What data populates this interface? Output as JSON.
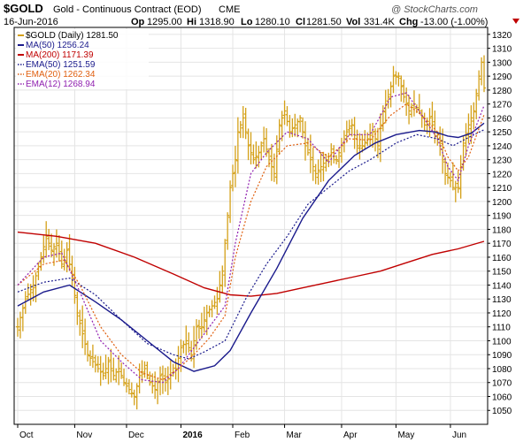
{
  "header": {
    "symbol": "$GOLD",
    "name": "Gold - Continuous Contract (EOD)",
    "exchange": "CME",
    "date": "16-Jun-2016",
    "open_label": "Op",
    "open": "1295.00",
    "high_label": "Hi",
    "high": "1318.90",
    "low_label": "Lo",
    "low": "1280.10",
    "close_label": "Cl",
    "close": "1281.50",
    "vol_label": "Vol",
    "vol": "331.4K",
    "chg_label": "Chg",
    "chg": "-13.00 (-1.00%)",
    "watermark": "@ StockCharts.com"
  },
  "colors": {
    "price": "#d4a017",
    "ma50": "#1a1a8c",
    "ma200": "#c00000",
    "ema50": "#1a1a8c",
    "ema20": "#e06010",
    "ema12": "#9020b0",
    "grid": "#e4e4e4",
    "down_arrow": "#c00000"
  },
  "chart_data": {
    "type": "line",
    "ylim": [
      1040,
      1325
    ],
    "y_ticks": [
      1050,
      1060,
      1070,
      1080,
      1090,
      1100,
      1110,
      1120,
      1130,
      1140,
      1150,
      1160,
      1170,
      1180,
      1190,
      1200,
      1210,
      1220,
      1230,
      1240,
      1250,
      1260,
      1270,
      1280,
      1290,
      1300,
      1310,
      1320
    ],
    "x_ticks": [
      "Oct",
      "Nov",
      "Dec",
      "2016",
      "Feb",
      "Mar",
      "Apr",
      "May",
      "Jun"
    ],
    "x_tick_index": [
      0,
      22,
      42,
      63,
      83,
      103,
      125,
      146,
      167
    ],
    "n_bars": 181,
    "legend": [
      {
        "key": "price",
        "label": "$GOLD (Daily) 1281.50",
        "style": "solid"
      },
      {
        "key": "ma50",
        "label": "MA(50) 1256.24",
        "style": "solid"
      },
      {
        "key": "ma200",
        "label": "MA(200) 1171.39",
        "style": "solid"
      },
      {
        "key": "ema50",
        "label": "EMA(50) 1251.59",
        "style": "dotted"
      },
      {
        "key": "ema20",
        "label": "EMA(20) 1262.34",
        "style": "dotted"
      },
      {
        "key": "ema12",
        "label": "EMA(12) 1268.94",
        "style": "dotted"
      }
    ],
    "price_anchors": [
      [
        0,
        1110
      ],
      [
        3,
        1130
      ],
      [
        6,
        1140
      ],
      [
        9,
        1160
      ],
      [
        11,
        1175
      ],
      [
        13,
        1165
      ],
      [
        15,
        1170
      ],
      [
        17,
        1155
      ],
      [
        19,
        1165
      ],
      [
        21,
        1145
      ],
      [
        23,
        1120
      ],
      [
        25,
        1105
      ],
      [
        27,
        1090
      ],
      [
        29,
        1085
      ],
      [
        31,
        1080
      ],
      [
        33,
        1075
      ],
      [
        35,
        1085
      ],
      [
        37,
        1075
      ],
      [
        39,
        1080
      ],
      [
        41,
        1070
      ],
      [
        43,
        1065
      ],
      [
        45,
        1060
      ],
      [
        47,
        1075
      ],
      [
        49,
        1080
      ],
      [
        51,
        1070
      ],
      [
        53,
        1065
      ],
      [
        55,
        1075
      ],
      [
        57,
        1070
      ],
      [
        59,
        1075
      ],
      [
        61,
        1080
      ],
      [
        63,
        1095
      ],
      [
        65,
        1100
      ],
      [
        67,
        1090
      ],
      [
        69,
        1110
      ],
      [
        71,
        1110
      ],
      [
        73,
        1120
      ],
      [
        75,
        1125
      ],
      [
        77,
        1130
      ],
      [
        79,
        1150
      ],
      [
        81,
        1190
      ],
      [
        82,
        1210
      ],
      [
        84,
        1230
      ],
      [
        85,
        1250
      ],
      [
        87,
        1260
      ],
      [
        89,
        1240
      ],
      [
        91,
        1230
      ],
      [
        93,
        1235
      ],
      [
        95,
        1245
      ],
      [
        97,
        1230
      ],
      [
        99,
        1220
      ],
      [
        101,
        1255
      ],
      [
        103,
        1265
      ],
      [
        105,
        1250
      ],
      [
        107,
        1255
      ],
      [
        109,
        1260
      ],
      [
        111,
        1240
      ],
      [
        113,
        1230
      ],
      [
        115,
        1220
      ],
      [
        117,
        1225
      ],
      [
        119,
        1230
      ],
      [
        121,
        1235
      ],
      [
        123,
        1230
      ],
      [
        125,
        1240
      ],
      [
        127,
        1250
      ],
      [
        129,
        1255
      ],
      [
        131,
        1240
      ],
      [
        133,
        1240
      ],
      [
        135,
        1245
      ],
      [
        137,
        1250
      ],
      [
        139,
        1240
      ],
      [
        141,
        1265
      ],
      [
        143,
        1275
      ],
      [
        145,
        1290
      ],
      [
        147,
        1290
      ],
      [
        149,
        1275
      ],
      [
        151,
        1265
      ],
      [
        153,
        1270
      ],
      [
        155,
        1265
      ],
      [
        157,
        1255
      ],
      [
        159,
        1260
      ],
      [
        161,
        1250
      ],
      [
        163,
        1240
      ],
      [
        165,
        1220
      ],
      [
        167,
        1215
      ],
      [
        168,
        1210
      ],
      [
        170,
        1210
      ],
      [
        172,
        1240
      ],
      [
        174,
        1255
      ],
      [
        176,
        1265
      ],
      [
        178,
        1290
      ],
      [
        179,
        1300
      ],
      [
        180,
        1281.5
      ]
    ],
    "ma50_anchors": [
      [
        0,
        1125
      ],
      [
        10,
        1135
      ],
      [
        20,
        1140
      ],
      [
        30,
        1128
      ],
      [
        40,
        1115
      ],
      [
        50,
        1100
      ],
      [
        60,
        1085
      ],
      [
        68,
        1078
      ],
      [
        76,
        1082
      ],
      [
        82,
        1093
      ],
      [
        90,
        1120
      ],
      [
        100,
        1152
      ],
      [
        110,
        1188
      ],
      [
        120,
        1215
      ],
      [
        130,
        1233
      ],
      [
        138,
        1242
      ],
      [
        146,
        1248
      ],
      [
        155,
        1251
      ],
      [
        161,
        1250
      ],
      [
        166,
        1247
      ],
      [
        170,
        1246
      ],
      [
        175,
        1249
      ],
      [
        180,
        1256.24
      ]
    ],
    "ma200_anchors": [
      [
        0,
        1178
      ],
      [
        15,
        1175
      ],
      [
        30,
        1170
      ],
      [
        45,
        1160
      ],
      [
        60,
        1148
      ],
      [
        72,
        1138
      ],
      [
        82,
        1133
      ],
      [
        90,
        1132
      ],
      [
        100,
        1134
      ],
      [
        110,
        1138
      ],
      [
        120,
        1142
      ],
      [
        130,
        1146
      ],
      [
        140,
        1150
      ],
      [
        150,
        1156
      ],
      [
        160,
        1162
      ],
      [
        170,
        1166
      ],
      [
        180,
        1171.39
      ]
    ],
    "ema50_anchors": [
      [
        0,
        1135
      ],
      [
        10,
        1142
      ],
      [
        20,
        1145
      ],
      [
        30,
        1133
      ],
      [
        40,
        1115
      ],
      [
        50,
        1098
      ],
      [
        60,
        1090
      ],
      [
        66,
        1087
      ],
      [
        72,
        1092
      ],
      [
        80,
        1100
      ],
      [
        88,
        1130
      ],
      [
        96,
        1155
      ],
      [
        104,
        1175
      ],
      [
        112,
        1198
      ],
      [
        120,
        1210
      ],
      [
        128,
        1222
      ],
      [
        136,
        1230
      ],
      [
        146,
        1242
      ],
      [
        154,
        1248
      ],
      [
        162,
        1245
      ],
      [
        168,
        1240
      ],
      [
        174,
        1246
      ],
      [
        180,
        1251.59
      ]
    ],
    "ema20_anchors": [
      [
        0,
        1140
      ],
      [
        10,
        1155
      ],
      [
        18,
        1158
      ],
      [
        24,
        1140
      ],
      [
        32,
        1110
      ],
      [
        40,
        1090
      ],
      [
        48,
        1077
      ],
      [
        56,
        1072
      ],
      [
        62,
        1080
      ],
      [
        68,
        1090
      ],
      [
        74,
        1102
      ],
      [
        80,
        1118
      ],
      [
        84,
        1160
      ],
      [
        90,
        1200
      ],
      [
        96,
        1225
      ],
      [
        104,
        1240
      ],
      [
        112,
        1242
      ],
      [
        120,
        1232
      ],
      [
        128,
        1245
      ],
      [
        136,
        1244
      ],
      [
        144,
        1262
      ],
      [
        150,
        1270
      ],
      [
        156,
        1262
      ],
      [
        162,
        1250
      ],
      [
        166,
        1232
      ],
      [
        170,
        1222
      ],
      [
        174,
        1232
      ],
      [
        180,
        1262.34
      ]
    ],
    "ema12_anchors": [
      [
        0,
        1140
      ],
      [
        10,
        1160
      ],
      [
        17,
        1163
      ],
      [
        24,
        1135
      ],
      [
        32,
        1100
      ],
      [
        40,
        1085
      ],
      [
        48,
        1072
      ],
      [
        56,
        1070
      ],
      [
        62,
        1080
      ],
      [
        68,
        1095
      ],
      [
        74,
        1110
      ],
      [
        80,
        1125
      ],
      [
        84,
        1170
      ],
      [
        90,
        1220
      ],
      [
        96,
        1235
      ],
      [
        104,
        1250
      ],
      [
        112,
        1245
      ],
      [
        120,
        1228
      ],
      [
        128,
        1248
      ],
      [
        136,
        1248
      ],
      [
        144,
        1275
      ],
      [
        150,
        1278
      ],
      [
        156,
        1262
      ],
      [
        162,
        1245
      ],
      [
        166,
        1225
      ],
      [
        170,
        1215
      ],
      [
        174,
        1240
      ],
      [
        180,
        1268.94
      ]
    ]
  }
}
